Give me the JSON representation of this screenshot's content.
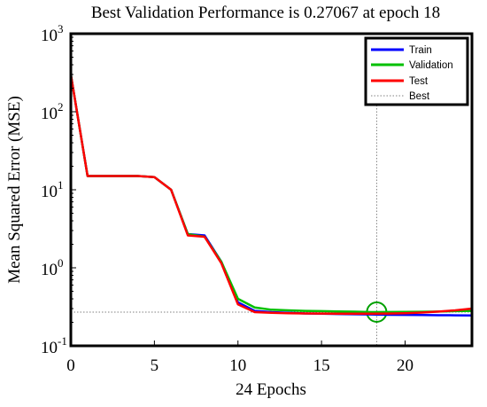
{
  "chart_data": {
    "type": "line",
    "title": "Best Validation Performance is 0.27067 at epoch 18",
    "xlabel": "24 Epochs",
    "ylabel": "Mean Squared Error (MSE)",
    "x_scale": "linear",
    "y_scale": "log",
    "xlim": [
      0,
      24
    ],
    "ylim": [
      0.1,
      1000
    ],
    "x_ticks": [
      0,
      5,
      10,
      15,
      20
    ],
    "y_ticks": [
      {
        "value": 0.1,
        "base": "10",
        "exp": "-1"
      },
      {
        "value": 1,
        "base": "10",
        "exp": "0"
      },
      {
        "value": 10,
        "base": "10",
        "exp": "1"
      },
      {
        "value": 100,
        "base": "10",
        "exp": "2"
      },
      {
        "value": 1000,
        "base": "10",
        "exp": "3"
      }
    ],
    "grid": false,
    "legend_position": "top-right",
    "x": [
      0,
      1,
      2,
      3,
      4,
      5,
      6,
      7,
      8,
      9,
      10,
      11,
      12,
      13,
      14,
      15,
      16,
      17,
      18,
      19,
      20,
      21,
      22,
      23,
      24
    ],
    "series": [
      {
        "name": "Train",
        "color": "#0000ff",
        "values": [
          300,
          15.0,
          15.0,
          15.0,
          15.0,
          14.5,
          10.0,
          2.7,
          2.6,
          1.2,
          0.36,
          0.28,
          0.27,
          0.265,
          0.26,
          0.258,
          0.256,
          0.254,
          0.252,
          0.25,
          0.249,
          0.248,
          0.247,
          0.246,
          0.245
        ]
      },
      {
        "name": "Validation",
        "color": "#00c000",
        "values": [
          300,
          15.0,
          15.0,
          15.0,
          15.0,
          14.5,
          10.0,
          2.7,
          2.5,
          1.2,
          0.4,
          0.31,
          0.29,
          0.285,
          0.28,
          0.278,
          0.276,
          0.274,
          0.27067,
          0.271,
          0.272,
          0.273,
          0.275,
          0.278,
          0.28
        ]
      },
      {
        "name": "Test",
        "color": "#ff0000",
        "values": [
          300,
          15.0,
          15.0,
          15.0,
          15.0,
          14.5,
          10.0,
          2.6,
          2.5,
          1.15,
          0.34,
          0.27,
          0.265,
          0.262,
          0.26,
          0.259,
          0.258,
          0.258,
          0.258,
          0.259,
          0.262,
          0.267,
          0.275,
          0.285,
          0.3
        ]
      }
    ],
    "best": {
      "name": "Best",
      "epoch": 18.3,
      "value": 0.27067,
      "line_color": "#808080",
      "marker_color": "#00a000"
    }
  }
}
